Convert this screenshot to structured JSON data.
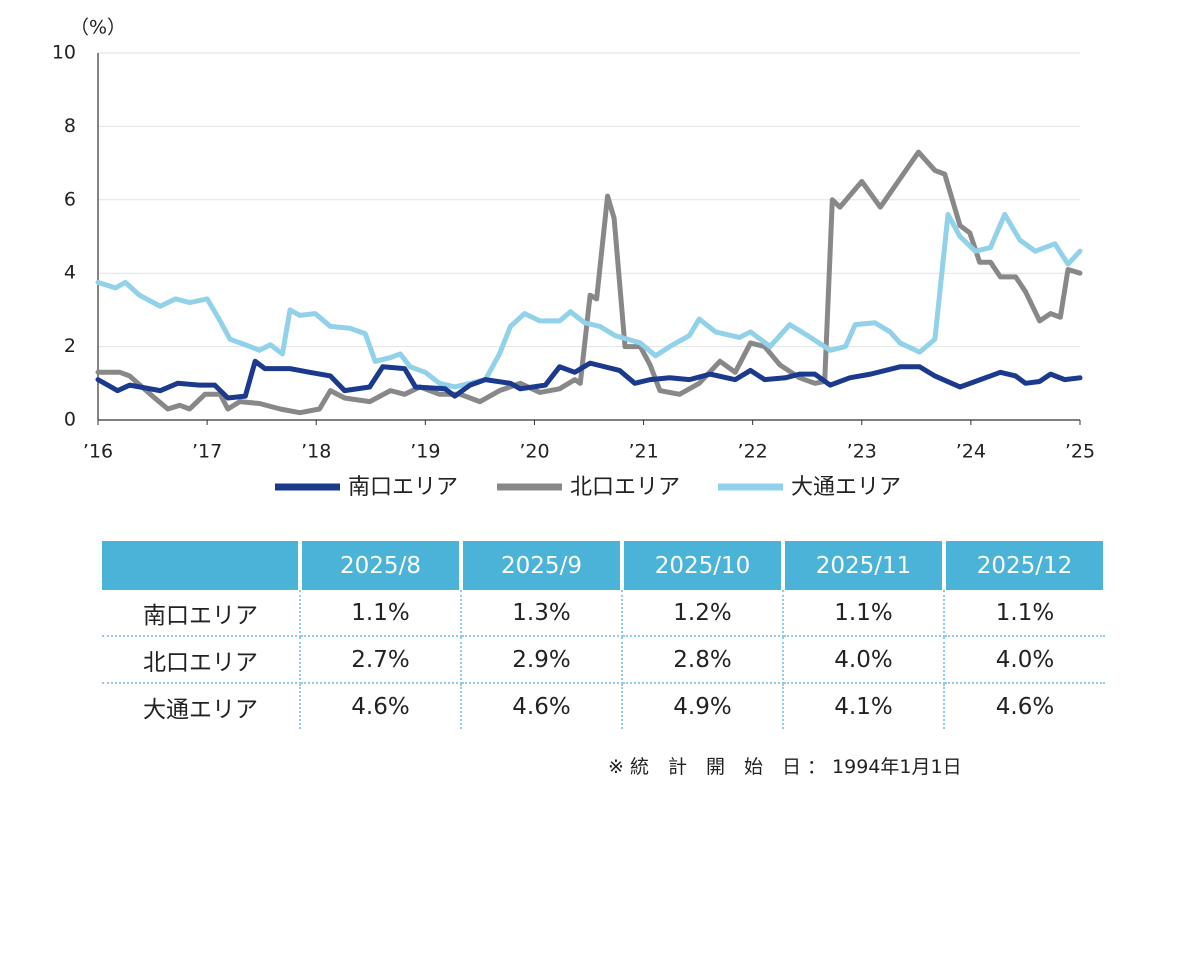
{
  "chart_data": {
    "type": "line",
    "y_label": "（%）",
    "xlim": [
      2016,
      2025
    ],
    "ylim": [
      0,
      10
    ],
    "xticks": [
      {
        "value": 2016,
        "label": "’16"
      },
      {
        "value": 2017,
        "label": "’17"
      },
      {
        "value": 2018,
        "label": "’18"
      },
      {
        "value": 2019,
        "label": "’19"
      },
      {
        "value": 2020,
        "label": "’20"
      },
      {
        "value": 2021,
        "label": "’21"
      },
      {
        "value": 2022,
        "label": "’22"
      },
      {
        "value": 2023,
        "label": "’23"
      },
      {
        "value": 2024,
        "label": "’24"
      },
      {
        "value": 2025,
        "label": "’25"
      }
    ],
    "yticks": [
      0,
      2,
      4,
      6,
      8,
      10
    ],
    "grid": true,
    "series": [
      {
        "name": "南口エリア",
        "color": "#1b3a8e",
        "x": [
          2016,
          2016.18,
          2016.29,
          2016.57,
          2016.73,
          2016.93,
          2017.07,
          2017.19,
          2017.35,
          2017.44,
          2017.53,
          2017.76,
          2017.94,
          2018.13,
          2018.26,
          2018.49,
          2018.61,
          2018.81,
          2018.91,
          2019.18,
          2019.27,
          2019.41,
          2019.55,
          2019.78,
          2019.87,
          2020.1,
          2020.23,
          2020.37,
          2020.51,
          2020.78,
          2020.92,
          2021.06,
          2021.24,
          2021.42,
          2021.61,
          2021.84,
          2021.98,
          2022.11,
          2022.3,
          2022.43,
          2022.57,
          2022.71,
          2022.89,
          2023.08,
          2023.35,
          2023.53,
          2023.67,
          2023.9,
          2024.18,
          2024.27,
          2024.41,
          2024.5,
          2024.63,
          2024.73,
          2024.86,
          2025
        ],
        "values": [
          1.1,
          0.8,
          0.95,
          0.8,
          1.0,
          0.95,
          0.95,
          0.6,
          0.65,
          1.6,
          1.4,
          1.4,
          1.3,
          1.2,
          0.8,
          0.9,
          1.45,
          1.4,
          0.9,
          0.85,
          0.65,
          0.95,
          1.1,
          1.0,
          0.85,
          0.95,
          1.45,
          1.3,
          1.55,
          1.35,
          1.0,
          1.1,
          1.15,
          1.1,
          1.25,
          1.1,
          1.35,
          1.1,
          1.15,
          1.25,
          1.25,
          0.95,
          1.15,
          1.25,
          1.45,
          1.45,
          1.2,
          0.9,
          1.2,
          1.3,
          1.2,
          1.0,
          1.05,
          1.25,
          1.1,
          1.15
        ]
      },
      {
        "name": "北口エリア",
        "color": "#888888",
        "x": [
          2016,
          2016.2,
          2016.29,
          2016.48,
          2016.64,
          2016.75,
          2016.84,
          2016.98,
          2017.12,
          2017.19,
          2017.3,
          2017.48,
          2017.67,
          2017.85,
          2018.03,
          2018.13,
          2018.26,
          2018.49,
          2018.68,
          2018.81,
          2018.95,
          2019.13,
          2019.32,
          2019.5,
          2019.68,
          2019.87,
          2020.05,
          2020.23,
          2020.37,
          2020.42,
          2020.51,
          2020.57,
          2020.67,
          2020.73,
          2020.83,
          2020.97,
          2021.06,
          2021.15,
          2021.33,
          2021.51,
          2021.7,
          2021.84,
          2021.98,
          2022.11,
          2022.25,
          2022.43,
          2022.57,
          2022.66,
          2022.73,
          2022.8,
          2023,
          2023.17,
          2023.31,
          2023.52,
          2023.67,
          2023.76,
          2023.9,
          2023.99,
          2024.08,
          2024.18,
          2024.27,
          2024.41,
          2024.5,
          2024.63,
          2024.73,
          2024.82,
          2024.89,
          2025
        ],
        "values": [
          1.3,
          1.3,
          1.2,
          0.7,
          0.3,
          0.4,
          0.3,
          0.7,
          0.7,
          0.3,
          0.5,
          0.45,
          0.3,
          0.2,
          0.3,
          0.8,
          0.6,
          0.5,
          0.8,
          0.7,
          0.9,
          0.7,
          0.7,
          0.5,
          0.8,
          1.0,
          0.75,
          0.85,
          1.1,
          1.0,
          3.4,
          3.3,
          6.1,
          5.5,
          2.0,
          2.0,
          1.5,
          0.8,
          0.7,
          1.0,
          1.6,
          1.3,
          2.1,
          2.0,
          1.5,
          1.15,
          1.0,
          1.05,
          6.0,
          5.8,
          6.5,
          5.8,
          6.4,
          7.3,
          6.8,
          6.7,
          5.3,
          5.1,
          4.3,
          4.3,
          3.9,
          3.9,
          3.5,
          2.7,
          2.9,
          2.8,
          4.1,
          4.0
        ]
      },
      {
        "name": "大通エリア",
        "color": "#91d1e9",
        "x": [
          2016,
          2016.16,
          2016.25,
          2016.38,
          2016.57,
          2016.71,
          2016.84,
          2017,
          2017.1,
          2017.21,
          2017.35,
          2017.48,
          2017.58,
          2017.69,
          2017.76,
          2017.85,
          2017.99,
          2018.13,
          2018.31,
          2018.45,
          2018.54,
          2018.68,
          2018.77,
          2018.86,
          2019,
          2019.13,
          2019.27,
          2019.41,
          2019.55,
          2019.68,
          2019.78,
          2019.91,
          2020.05,
          2020.23,
          2020.33,
          2020.46,
          2020.6,
          2020.74,
          2020.97,
          2021.11,
          2021.24,
          2021.42,
          2021.51,
          2021.66,
          2021.88,
          2021.98,
          2022.16,
          2022.34,
          2022.53,
          2022.71,
          2022.85,
          2022.94,
          2023.12,
          2023.26,
          2023.35,
          2023.53,
          2023.67,
          2023.79,
          2023.9,
          2024.04,
          2024.18,
          2024.31,
          2024.45,
          2024.59,
          2024.77,
          2024.89,
          2025
        ],
        "values": [
          3.75,
          3.6,
          3.75,
          3.4,
          3.1,
          3.3,
          3.2,
          3.3,
          2.8,
          2.2,
          2.05,
          1.9,
          2.05,
          1.8,
          3.0,
          2.85,
          2.9,
          2.55,
          2.5,
          2.35,
          1.6,
          1.7,
          1.8,
          1.45,
          1.3,
          1.0,
          0.9,
          1.0,
          1.1,
          1.8,
          2.55,
          2.9,
          2.7,
          2.7,
          2.95,
          2.65,
          2.55,
          2.3,
          2.1,
          1.75,
          2.0,
          2.3,
          2.75,
          2.4,
          2.25,
          2.4,
          2.0,
          2.6,
          2.25,
          1.9,
          2.0,
          2.6,
          2.65,
          2.4,
          2.1,
          1.85,
          2.2,
          5.6,
          5.0,
          4.6,
          4.7,
          5.6,
          4.9,
          4.6,
          4.8,
          4.25,
          4.6
        ]
      }
    ]
  },
  "table": {
    "header": [
      "2025/8",
      "2025/9",
      "2025/10",
      "2025/11",
      "2025/12"
    ],
    "rows": [
      [
        "南口エリア",
        "1.1%",
        "1.3%",
        "1.2%",
        "1.1%",
        "1.1%"
      ],
      [
        "北口エリア",
        "2.7%",
        "2.9%",
        "2.8%",
        "4.0%",
        "4.0%"
      ],
      [
        "大通エリア",
        "4.6%",
        "4.6%",
        "4.9%",
        "4.1%",
        "4.6%"
      ]
    ]
  },
  "note": "※ 統　計　開　始　日 ： 1994年1月1日"
}
